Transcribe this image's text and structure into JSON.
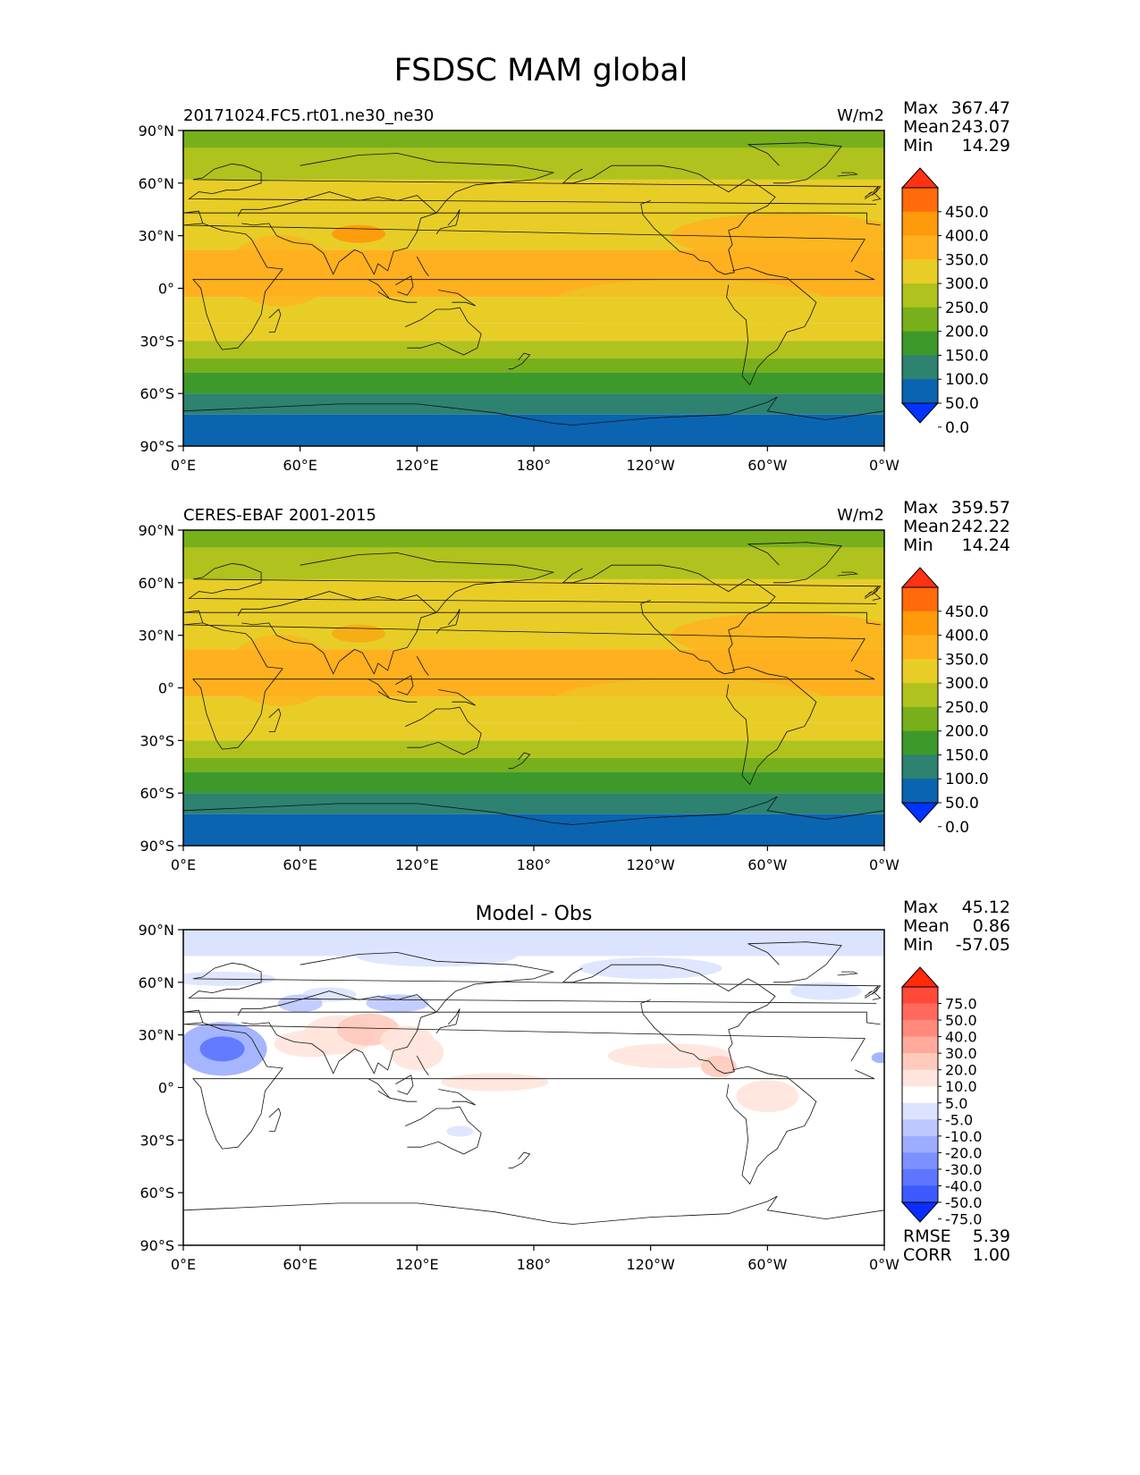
{
  "figure": {
    "title": "FSDSC MAM global"
  },
  "panels": [
    {
      "left_title": "20171024.FC5.rt01.ne30_ne30",
      "center_title": "",
      "units": "W/m2",
      "stats": [
        {
          "label": "Max",
          "value": "367.47"
        },
        {
          "label": "Mean",
          "value": "243.07"
        },
        {
          "label": "Min",
          "value": "14.29"
        }
      ],
      "colorbar": "abs",
      "field": "model",
      "extra_stats": []
    },
    {
      "left_title": "CERES-EBAF 2001-2015",
      "center_title": "",
      "units": "W/m2",
      "stats": [
        {
          "label": "Max",
          "value": "359.57"
        },
        {
          "label": "Mean",
          "value": "242.22"
        },
        {
          "label": "Min",
          "value": "14.24"
        }
      ],
      "colorbar": "abs",
      "field": "obs",
      "extra_stats": []
    },
    {
      "left_title": "",
      "center_title": "Model - Obs",
      "units": "",
      "stats": [
        {
          "label": "Max",
          "value": "45.12"
        },
        {
          "label": "Mean",
          "value": "0.86"
        },
        {
          "label": "Min",
          "value": "-57.05"
        }
      ],
      "colorbar": "diff",
      "field": "diff",
      "extra_stats": [
        {
          "label": "RMSE",
          "value": "5.39"
        },
        {
          "label": "CORR",
          "value": "1.00"
        }
      ]
    }
  ],
  "axes": {
    "lon_ticks": [
      "0°E",
      "60°E",
      "120°E",
      "180°",
      "120°W",
      "60°W",
      "0°W"
    ],
    "lat_ticks": [
      "90°N",
      "60°N",
      "30°N",
      "0°",
      "30°S",
      "60°S",
      "90°S"
    ]
  },
  "colorbars": {
    "abs": {
      "labels": [
        "450.0",
        "400.0",
        "350.0",
        "300.0",
        "250.0",
        "200.0",
        "150.0",
        "100.0",
        "50.0",
        "0.0"
      ],
      "colors": [
        "#ff3314",
        "#ff6a0a",
        "#ff9a0a",
        "#ffb01f",
        "#e8cd27",
        "#b0c21d",
        "#78b01b",
        "#3d9a2a",
        "#2d8270",
        "#0a64b0",
        "#0033ff"
      ]
    },
    "diff": {
      "labels": [
        "75.0",
        "50.0",
        "40.0",
        "30.0",
        "20.0",
        "10.0",
        "5.0",
        "-5.0",
        "-10.0",
        "-20.0",
        "-30.0",
        "-40.0",
        "-50.0",
        "-75.0"
      ],
      "colors": [
        "#ff2a0a",
        "#ff4a3a",
        "#ff6a5c",
        "#ff8a7c",
        "#ffaa9c",
        "#ffcabc",
        "#ffe4dc",
        "#ffffff",
        "#dce3ff",
        "#bcc8ff",
        "#9cadff",
        "#7c91ff",
        "#5c76ff",
        "#3c5aff",
        "#0a2eff"
      ]
    }
  }
}
